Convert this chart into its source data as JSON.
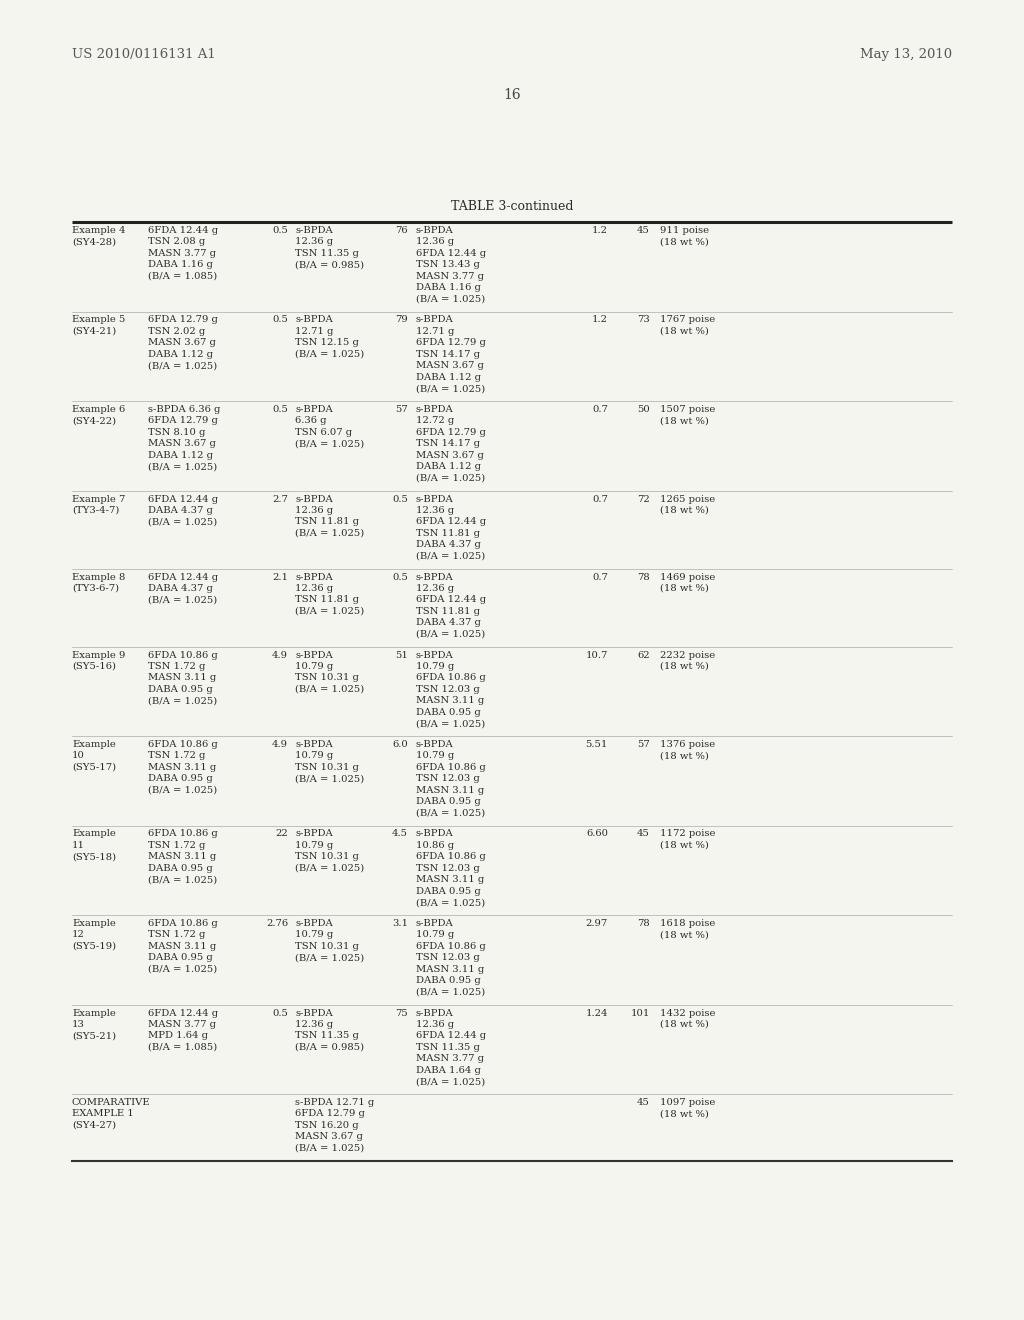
{
  "header_left": "US 2010/0116131 A1",
  "header_right": "May 13, 2010",
  "page_number": "16",
  "table_title": "TABLE 3-continued",
  "bg_color": "#f5f5f0",
  "text_color": "#333333",
  "rows": [
    {
      "col1": "Example 4\n(SY4-28)",
      "col2": "6FDA 12.44 g\nTSN 2.08 g\nMASN 3.77 g\nDABA 1.16 g\n(B/A = 1.085)",
      "col3": "0.5",
      "col4": "s-BPDA\n12.36 g\nTSN 11.35 g\n(B/A = 0.985)",
      "col5": "76",
      "col6": "s-BPDA\n12.36 g\n6FDA 12.44 g\nTSN 13.43 g\nMASN 3.77 g\nDABA 1.16 g\n(B/A = 1.025)",
      "col7": "1.2",
      "col8": "45",
      "col9": "911 poise\n(18 wt %)"
    },
    {
      "col1": "Example 5\n(SY4-21)",
      "col2": "6FDA 12.79 g\nTSN 2.02 g\nMASN 3.67 g\nDABA 1.12 g\n(B/A = 1.025)",
      "col3": "0.5",
      "col4": "s-BPDA\n12.71 g\nTSN 12.15 g\n(B/A = 1.025)",
      "col5": "79",
      "col6": "s-BPDA\n12.71 g\n6FDA 12.79 g\nTSN 14.17 g\nMASN 3.67 g\nDABA 1.12 g\n(B/A = 1.025)",
      "col7": "1.2",
      "col8": "73",
      "col9": "1767 poise\n(18 wt %)"
    },
    {
      "col1": "Example 6\n(SY4-22)",
      "col2": "s-BPDA 6.36 g\n6FDA 12.79 g\nTSN 8.10 g\nMASN 3.67 g\nDABA 1.12 g\n(B/A = 1.025)",
      "col3": "0.5",
      "col4": "s-BPDA\n6.36 g\nTSN 6.07 g\n(B/A = 1.025)",
      "col5": "57",
      "col6": "s-BPDA\n12.72 g\n6FDA 12.79 g\nTSN 14.17 g\nMASN 3.67 g\nDABA 1.12 g\n(B/A = 1.025)",
      "col7": "0.7",
      "col8": "50",
      "col9": "1507 poise\n(18 wt %)"
    },
    {
      "col1": "Example 7\n(TY3-4-7)",
      "col2": "6FDA 12.44 g\nDABA 4.37 g\n(B/A = 1.025)",
      "col3": "2.7",
      "col4": "s-BPDA\n12.36 g\nTSN 11.81 g\n(B/A = 1.025)",
      "col5": "0.5",
      "col6": "s-BPDA\n12.36 g\n6FDA 12.44 g\nTSN 11.81 g\nDABA 4.37 g\n(B/A = 1.025)",
      "col7": "0.7",
      "col8": "72",
      "col9": "1265 poise\n(18 wt %)"
    },
    {
      "col1": "Example 8\n(TY3-6-7)",
      "col2": "6FDA 12.44 g\nDABA 4.37 g\n(B/A = 1.025)",
      "col3": "2.1",
      "col4": "s-BPDA\n12.36 g\nTSN 11.81 g\n(B/A = 1.025)",
      "col5": "0.5",
      "col6": "s-BPDA\n12.36 g\n6FDA 12.44 g\nTSN 11.81 g\nDABA 4.37 g\n(B/A = 1.025)",
      "col7": "0.7",
      "col8": "78",
      "col9": "1469 poise\n(18 wt %)"
    },
    {
      "col1": "Example 9\n(SY5-16)",
      "col2": "6FDA 10.86 g\nTSN 1.72 g\nMASN 3.11 g\nDABA 0.95 g\n(B/A = 1.025)",
      "col3": "4.9",
      "col4": "s-BPDA\n10.79 g\nTSN 10.31 g\n(B/A = 1.025)",
      "col5": "51",
      "col6": "s-BPDA\n10.79 g\n6FDA 10.86 g\nTSN 12.03 g\nMASN 3.11 g\nDABA 0.95 g\n(B/A = 1.025)",
      "col7": "10.7",
      "col8": "62",
      "col9": "2232 poise\n(18 wt %)"
    },
    {
      "col1": "Example\n10\n(SY5-17)",
      "col2": "6FDA 10.86 g\nTSN 1.72 g\nMASN 3.11 g\nDABA 0.95 g\n(B/A = 1.025)",
      "col3": "4.9",
      "col4": "s-BPDA\n10.79 g\nTSN 10.31 g\n(B/A = 1.025)",
      "col5": "6.0",
      "col6": "s-BPDA\n10.79 g\n6FDA 10.86 g\nTSN 12.03 g\nMASN 3.11 g\nDABA 0.95 g\n(B/A = 1.025)",
      "col7": "5.51",
      "col8": "57",
      "col9": "1376 poise\n(18 wt %)"
    },
    {
      "col1": "Example\n11\n(SY5-18)",
      "col2": "6FDA 10.86 g\nTSN 1.72 g\nMASN 3.11 g\nDABA 0.95 g\n(B/A = 1.025)",
      "col3": "22",
      "col4": "s-BPDA\n10.79 g\nTSN 10.31 g\n(B/A = 1.025)",
      "col5": "4.5",
      "col6": "s-BPDA\n10.86 g\n6FDA 10.86 g\nTSN 12.03 g\nMASN 3.11 g\nDABA 0.95 g\n(B/A = 1.025)",
      "col7": "6.60",
      "col8": "45",
      "col9": "1172 poise\n(18 wt %)"
    },
    {
      "col1": "Example\n12\n(SY5-19)",
      "col2": "6FDA 10.86 g\nTSN 1.72 g\nMASN 3.11 g\nDABA 0.95 g\n(B/A = 1.025)",
      "col3": "2.76",
      "col4": "s-BPDA\n10.79 g\nTSN 10.31 g\n(B/A = 1.025)",
      "col5": "3.1",
      "col6": "s-BPDA\n10.79 g\n6FDA 10.86 g\nTSN 12.03 g\nMASN 3.11 g\nDABA 0.95 g\n(B/A = 1.025)",
      "col7": "2.97",
      "col8": "78",
      "col9": "1618 poise\n(18 wt %)"
    },
    {
      "col1": "Example\n13\n(SY5-21)",
      "col2": "6FDA 12.44 g\nMASN 3.77 g\nMPD 1.64 g\n(B/A = 1.085)",
      "col3": "0.5",
      "col4": "s-BPDA\n12.36 g\nTSN 11.35 g\n(B/A = 0.985)",
      "col5": "75",
      "col6": "s-BPDA\n12.36 g\n6FDA 12.44 g\nTSN 11.35 g\nMASN 3.77 g\nDABA 1.64 g\n(B/A = 1.025)",
      "col7": "1.24",
      "col8": "101",
      "col9": "1432 poise\n(18 wt %)"
    },
    {
      "col1": "COMPARATIVE\nEXAMPLE 1\n(SY4-27)",
      "col2": "",
      "col3": "",
      "col4": "s-BPDA 12.71 g\n6FDA 12.79 g\nTSN 16.20 g\nMASN 3.67 g\n(B/A = 1.025)",
      "col5": "",
      "col6": "",
      "col7": "",
      "col8": "45",
      "col9": "1097 poise\n(18 wt %)"
    }
  ]
}
